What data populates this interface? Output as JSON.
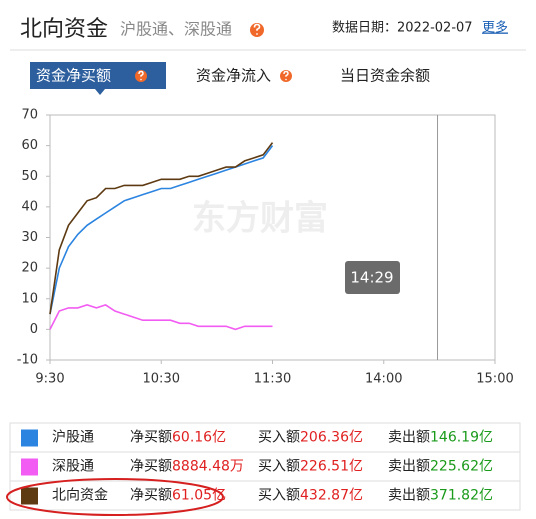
{
  "header": {
    "title": "北向资金",
    "subtitle": "沪股通、深股通",
    "date_label": "数据日期：2022-02-07",
    "more_link": "更多"
  },
  "tabs": [
    "资金净买额",
    "资金净流入",
    "当日资金余额"
  ],
  "chart_data": {
    "type": "line",
    "watermark": "东方财富",
    "x": [
      0,
      5,
      10,
      15,
      20,
      25,
      30,
      35,
      40,
      45,
      50,
      55,
      60,
      65,
      70,
      75,
      80,
      85,
      90,
      95,
      100,
      105,
      110,
      115,
      120
    ],
    "xlim": [
      0,
      240
    ],
    "xticks": [
      {
        "value": 0,
        "label": "9:30"
      },
      {
        "value": 60,
        "label": "10:30"
      },
      {
        "value": 120,
        "label": "11:30"
      },
      {
        "value": 180,
        "label": "14:00"
      },
      {
        "value": 240,
        "label": "15:00"
      }
    ],
    "ylim": [
      -10,
      70
    ],
    "yticks": [
      -10,
      0,
      10,
      20,
      30,
      40,
      50,
      60,
      70
    ],
    "cursor": {
      "x": 209,
      "label": "14:29"
    },
    "series": [
      {
        "name": "沪股通",
        "color": "#2b84e0",
        "values": [
          5,
          20,
          27,
          31,
          34,
          36,
          38,
          40,
          42,
          43,
          44,
          45,
          46,
          46,
          47,
          48,
          49,
          50,
          51,
          52,
          53,
          54,
          55,
          56,
          60
        ]
      },
      {
        "name": "深股通",
        "color": "#f25cf2",
        "values": [
          0,
          6,
          7,
          7,
          8,
          7,
          8,
          6,
          5,
          4,
          3,
          3,
          3,
          3,
          2,
          2,
          1,
          1,
          1,
          1,
          0,
          1,
          1,
          1,
          1
        ]
      },
      {
        "name": "北向资金",
        "color": "#5e3a12",
        "values": [
          5,
          26,
          34,
          38,
          42,
          43,
          46,
          46,
          47,
          47,
          47,
          48,
          49,
          49,
          49,
          50,
          50,
          51,
          52,
          53,
          53,
          55,
          56,
          57,
          61
        ]
      }
    ]
  },
  "legend_table": [
    {
      "net_label": "净买额",
      "net": "60.16亿",
      "buy_label": "买入额",
      "buy": "206.36亿",
      "sell_label": "卖出额",
      "sell": "146.19亿"
    },
    {
      "net_label": "净买额",
      "net": "8884.48万",
      "buy_label": "买入额",
      "buy": "226.51亿",
      "sell_label": "卖出额",
      "sell": "225.62亿"
    },
    {
      "net_label": "净买额",
      "net": "61.05亿",
      "buy_label": "买入额",
      "buy": "432.87亿",
      "sell_label": "卖出额",
      "sell": "371.82亿"
    }
  ]
}
